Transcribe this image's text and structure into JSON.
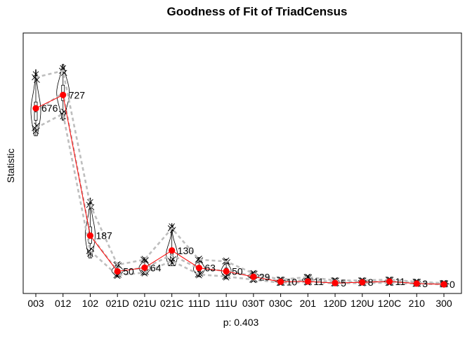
{
  "chart_data": {
    "type": "line",
    "title": "Goodness of Fit of TriadCensus",
    "xlabel": "p: 0.403",
    "ylabel": "Statistic",
    "categories": [
      "003",
      "012",
      "102",
      "021D",
      "021U",
      "021C",
      "111D",
      "111U",
      "030T",
      "030C",
      "201",
      "120D",
      "120U",
      "120C",
      "210",
      "300"
    ],
    "observed": [
      676,
      727,
      187,
      50,
      64,
      130,
      63,
      50,
      29,
      10,
      11,
      5,
      8,
      11,
      3,
      0
    ],
    "observed_labels": [
      "676",
      "727",
      "187",
      "50",
      "64",
      "130",
      "63",
      "50",
      "29",
      "10",
      "11",
      "5",
      "8",
      "11",
      "3",
      "0"
    ],
    "sim_median": [
      665,
      735,
      189,
      52,
      63,
      113,
      60,
      52,
      32,
      12,
      17,
      9,
      9,
      11,
      6,
      2
    ],
    "sim_lower": [
      600,
      655,
      128,
      35,
      45,
      90,
      38,
      30,
      18,
      6,
      8,
      4,
      5,
      6,
      2,
      0
    ],
    "sim_upper": [
      795,
      820,
      305,
      75,
      95,
      215,
      95,
      88,
      42,
      18,
      28,
      15,
      15,
      18,
      10,
      5
    ],
    "violin_widths": [
      7,
      9,
      7,
      8,
      8,
      8,
      8,
      7,
      8,
      8,
      8,
      7,
      7,
      8,
      7,
      7
    ],
    "ylim": [
      -35,
      965
    ],
    "grid": false,
    "legend": "none",
    "colors": {
      "observed": "#ff0000",
      "bounds": "#bebebe",
      "violin": "#000000"
    }
  }
}
